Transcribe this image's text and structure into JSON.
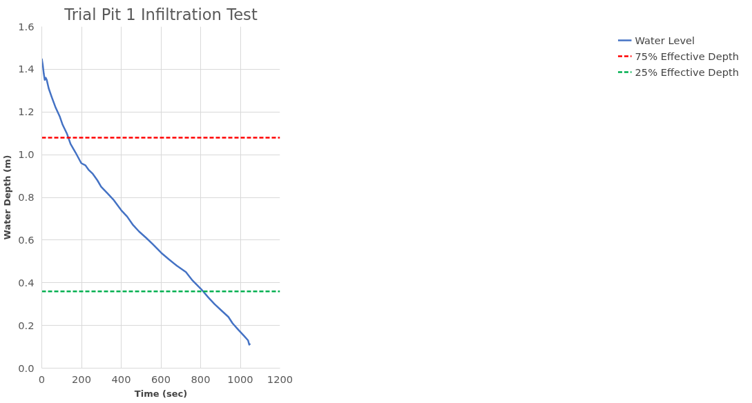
{
  "chart_data": {
    "type": "line",
    "title": "Trial Pit 1 Infiltration Test",
    "xlabel": "Time (sec)",
    "ylabel": "Water Depth (m)",
    "series": [
      {
        "name": "Water Level",
        "color": "#4472c4",
        "x": [
          0,
          5,
          10,
          15,
          20,
          25,
          35,
          50,
          70,
          90,
          105,
          126,
          145,
          170,
          199,
          220,
          235,
          257,
          280,
          299,
          330,
          360,
          400,
          430,
          460,
          490,
          526,
          560,
          602,
          640,
          680,
          726,
          760,
          803,
          840,
          870,
          905,
          940,
          961,
          990,
          1020,
          1039,
          1045,
          1050
        ],
        "values": [
          1.45,
          1.42,
          1.38,
          1.35,
          1.36,
          1.35,
          1.31,
          1.27,
          1.22,
          1.18,
          1.14,
          1.1,
          1.05,
          1.01,
          0.96,
          0.95,
          0.93,
          0.91,
          0.88,
          0.85,
          0.82,
          0.79,
          0.74,
          0.71,
          0.67,
          0.64,
          0.61,
          0.58,
          0.54,
          0.51,
          0.48,
          0.45,
          0.41,
          0.37,
          0.33,
          0.3,
          0.27,
          0.24,
          0.21,
          0.18,
          0.15,
          0.13,
          0.11,
          0.115
        ]
      }
    ],
    "ref_lines": [
      {
        "axis": "y",
        "value": 1.08,
        "label": "75% Effective Depth",
        "color": "#ff0000",
        "line_style": "dashed"
      },
      {
        "axis": "y",
        "value": 0.36,
        "label": "25% Effective Depth",
        "color": "#00b050",
        "line_style": "dashed"
      }
    ],
    "xlim": [
      0,
      1200
    ],
    "xticks": [
      0,
      200,
      400,
      600,
      800,
      1000,
      1200
    ],
    "ylim": [
      0,
      1.6
    ],
    "yticks": [
      {
        "value": 0,
        "label": "0.0"
      },
      0.2,
      0.4,
      0.6,
      0.8,
      {
        "value": 1,
        "label": "1.0"
      },
      1.2,
      1.4,
      1.6
    ],
    "grid": true,
    "legend": "right",
    "marker": "none",
    "line_style": "solid"
  }
}
